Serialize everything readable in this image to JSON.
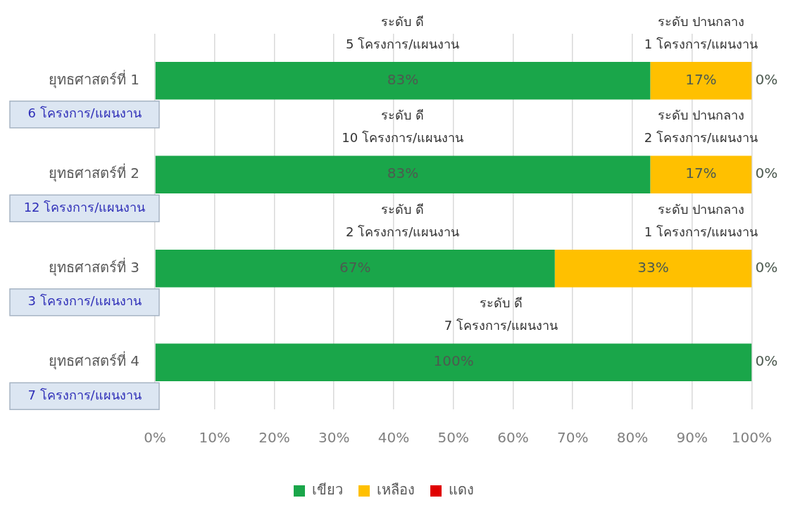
{
  "chart_data": {
    "type": "bar",
    "orientation": "horizontal",
    "stacked": true,
    "categories": [
      "ยุทธศาสตร์ที่ 1",
      "ยุทธศาสตร์ที่ 2",
      "ยุทธศาสตร์ที่ 3",
      "ยุทธศาสตร์ที่ 4"
    ],
    "series": [
      {
        "name": "เขียว",
        "color": "#1aa64a",
        "values": [
          83,
          83,
          67,
          100
        ],
        "value_labels": [
          "83%",
          "83%",
          "67%",
          "100%"
        ]
      },
      {
        "name": "เหลือง",
        "color": "#ffc000",
        "values": [
          17,
          17,
          33,
          0
        ],
        "value_labels": [
          "17%",
          "17%",
          "33%",
          null
        ]
      },
      {
        "name": "แดง",
        "color": "#e00000",
        "values": [
          0,
          0,
          0,
          0
        ],
        "value_labels": [
          "0%",
          "0%",
          "0%",
          "0%"
        ]
      }
    ],
    "xlim": [
      0,
      100
    ],
    "xticks": [
      {
        "value": 0,
        "label": "0%"
      },
      {
        "value": 10,
        "label": "10%"
      },
      {
        "value": 20,
        "label": "20%"
      },
      {
        "value": 30,
        "label": "30%"
      },
      {
        "value": 40,
        "label": "40%"
      },
      {
        "value": 50,
        "label": "50%"
      },
      {
        "value": 60,
        "label": "60%"
      },
      {
        "value": 70,
        "label": "70%"
      },
      {
        "value": 80,
        "label": "80%"
      },
      {
        "value": 90,
        "label": "90%"
      },
      {
        "value": 100,
        "label": "100%"
      }
    ],
    "grid": "x",
    "legend": "bottom",
    "annotations": [
      "ระดับ ดี\n5 โครงการ/แผนงาน",
      "ระดับ ปานกลาง\n1 โครงการ/แผนงาน",
      "ระดับ ดี\n10 โครงการ/แผนงาน",
      "ระดับ ปานกลาง\n2 โครงการ/แผนงาน",
      "ระดับ ดี\n2 โครงการ/แผนงาน",
      "ระดับ ปานกลาง\n1 โครงการ/แผนงาน",
      "ระดับ ดี\n7 โครงการ/แผนงาน",
      "6 โครงการ/แผนงาน",
      "12 โครงการ/แผนงาน",
      "3 โครงการ/แผนงาน",
      "7 โครงการ/แผนงาน"
    ]
  }
}
